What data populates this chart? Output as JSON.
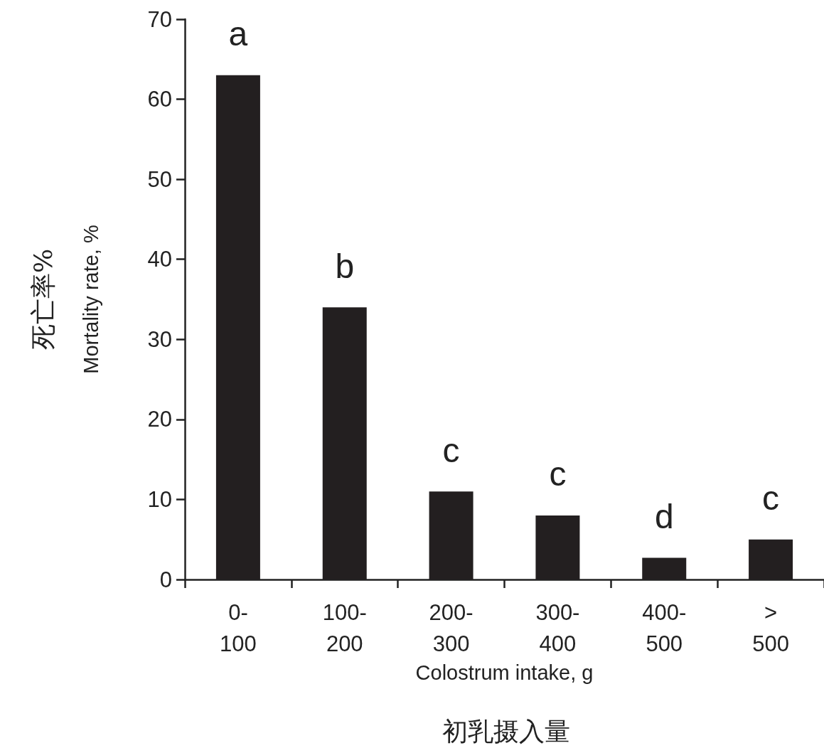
{
  "chart_data": {
    "type": "bar",
    "xlabel": "Colostrum intake, g",
    "ylabel": "Mortality rate, %",
    "categories": [
      "0-\n100",
      "100-\n200",
      "200-\n300",
      "300-\n400",
      "400-\n500",
      ">\n500"
    ],
    "values": [
      63,
      34,
      11,
      8,
      2.7,
      5
    ],
    "color": "#231f20",
    "ylim": [
      0,
      70
    ],
    "yticks": [
      0,
      10,
      20,
      30,
      40,
      50,
      60,
      70
    ],
    "annotations": [
      "死亡率%",
      "初乳摄入量",
      "a",
      "b",
      "c",
      "c",
      "d",
      "c"
    ]
  }
}
